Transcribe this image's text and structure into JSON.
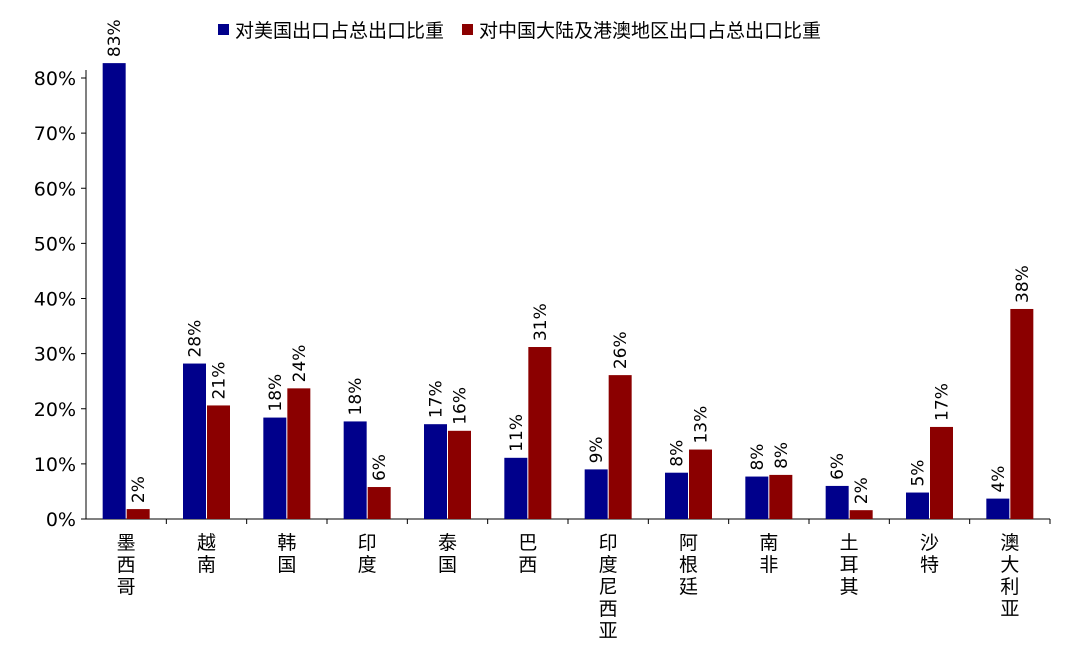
{
  "chart_data": {
    "type": "bar",
    "categories": [
      "墨西哥",
      "越南",
      "韩国",
      "印度",
      "泰国",
      "巴西",
      "印度尼西亚",
      "阿根廷",
      "南非",
      "土耳其",
      "沙特",
      "澳大利亚"
    ],
    "series": [
      {
        "name": "对美国出口占总出口比重",
        "color": "#00008B",
        "values": [
          82.7,
          28.2,
          18.4,
          17.7,
          17.2,
          11.1,
          9.0,
          8.4,
          7.7,
          6.0,
          4.8,
          3.7
        ],
        "labels": [
          "83%",
          "28%",
          "18%",
          "18%",
          "17%",
          "11%",
          "9%",
          "8%",
          "8%",
          "6%",
          "5%",
          "4%"
        ]
      },
      {
        "name": "对中国大陆及港澳地区出口占总出口比重",
        "color": "#8B0000",
        "values": [
          1.8,
          20.6,
          23.7,
          5.8,
          16.0,
          31.2,
          26.1,
          12.6,
          8.0,
          1.6,
          16.7,
          38.1
        ],
        "labels": [
          "2%",
          "21%",
          "24%",
          "6%",
          "16%",
          "31%",
          "26%",
          "13%",
          "8%",
          "2%",
          "17%",
          "38%"
        ]
      }
    ],
    "ylim": [
      0,
      80
    ],
    "yticks": [
      "0%",
      "10%",
      "20%",
      "30%",
      "40%",
      "50%",
      "60%",
      "70%",
      "80%"
    ],
    "grid": false,
    "legend": "top"
  }
}
